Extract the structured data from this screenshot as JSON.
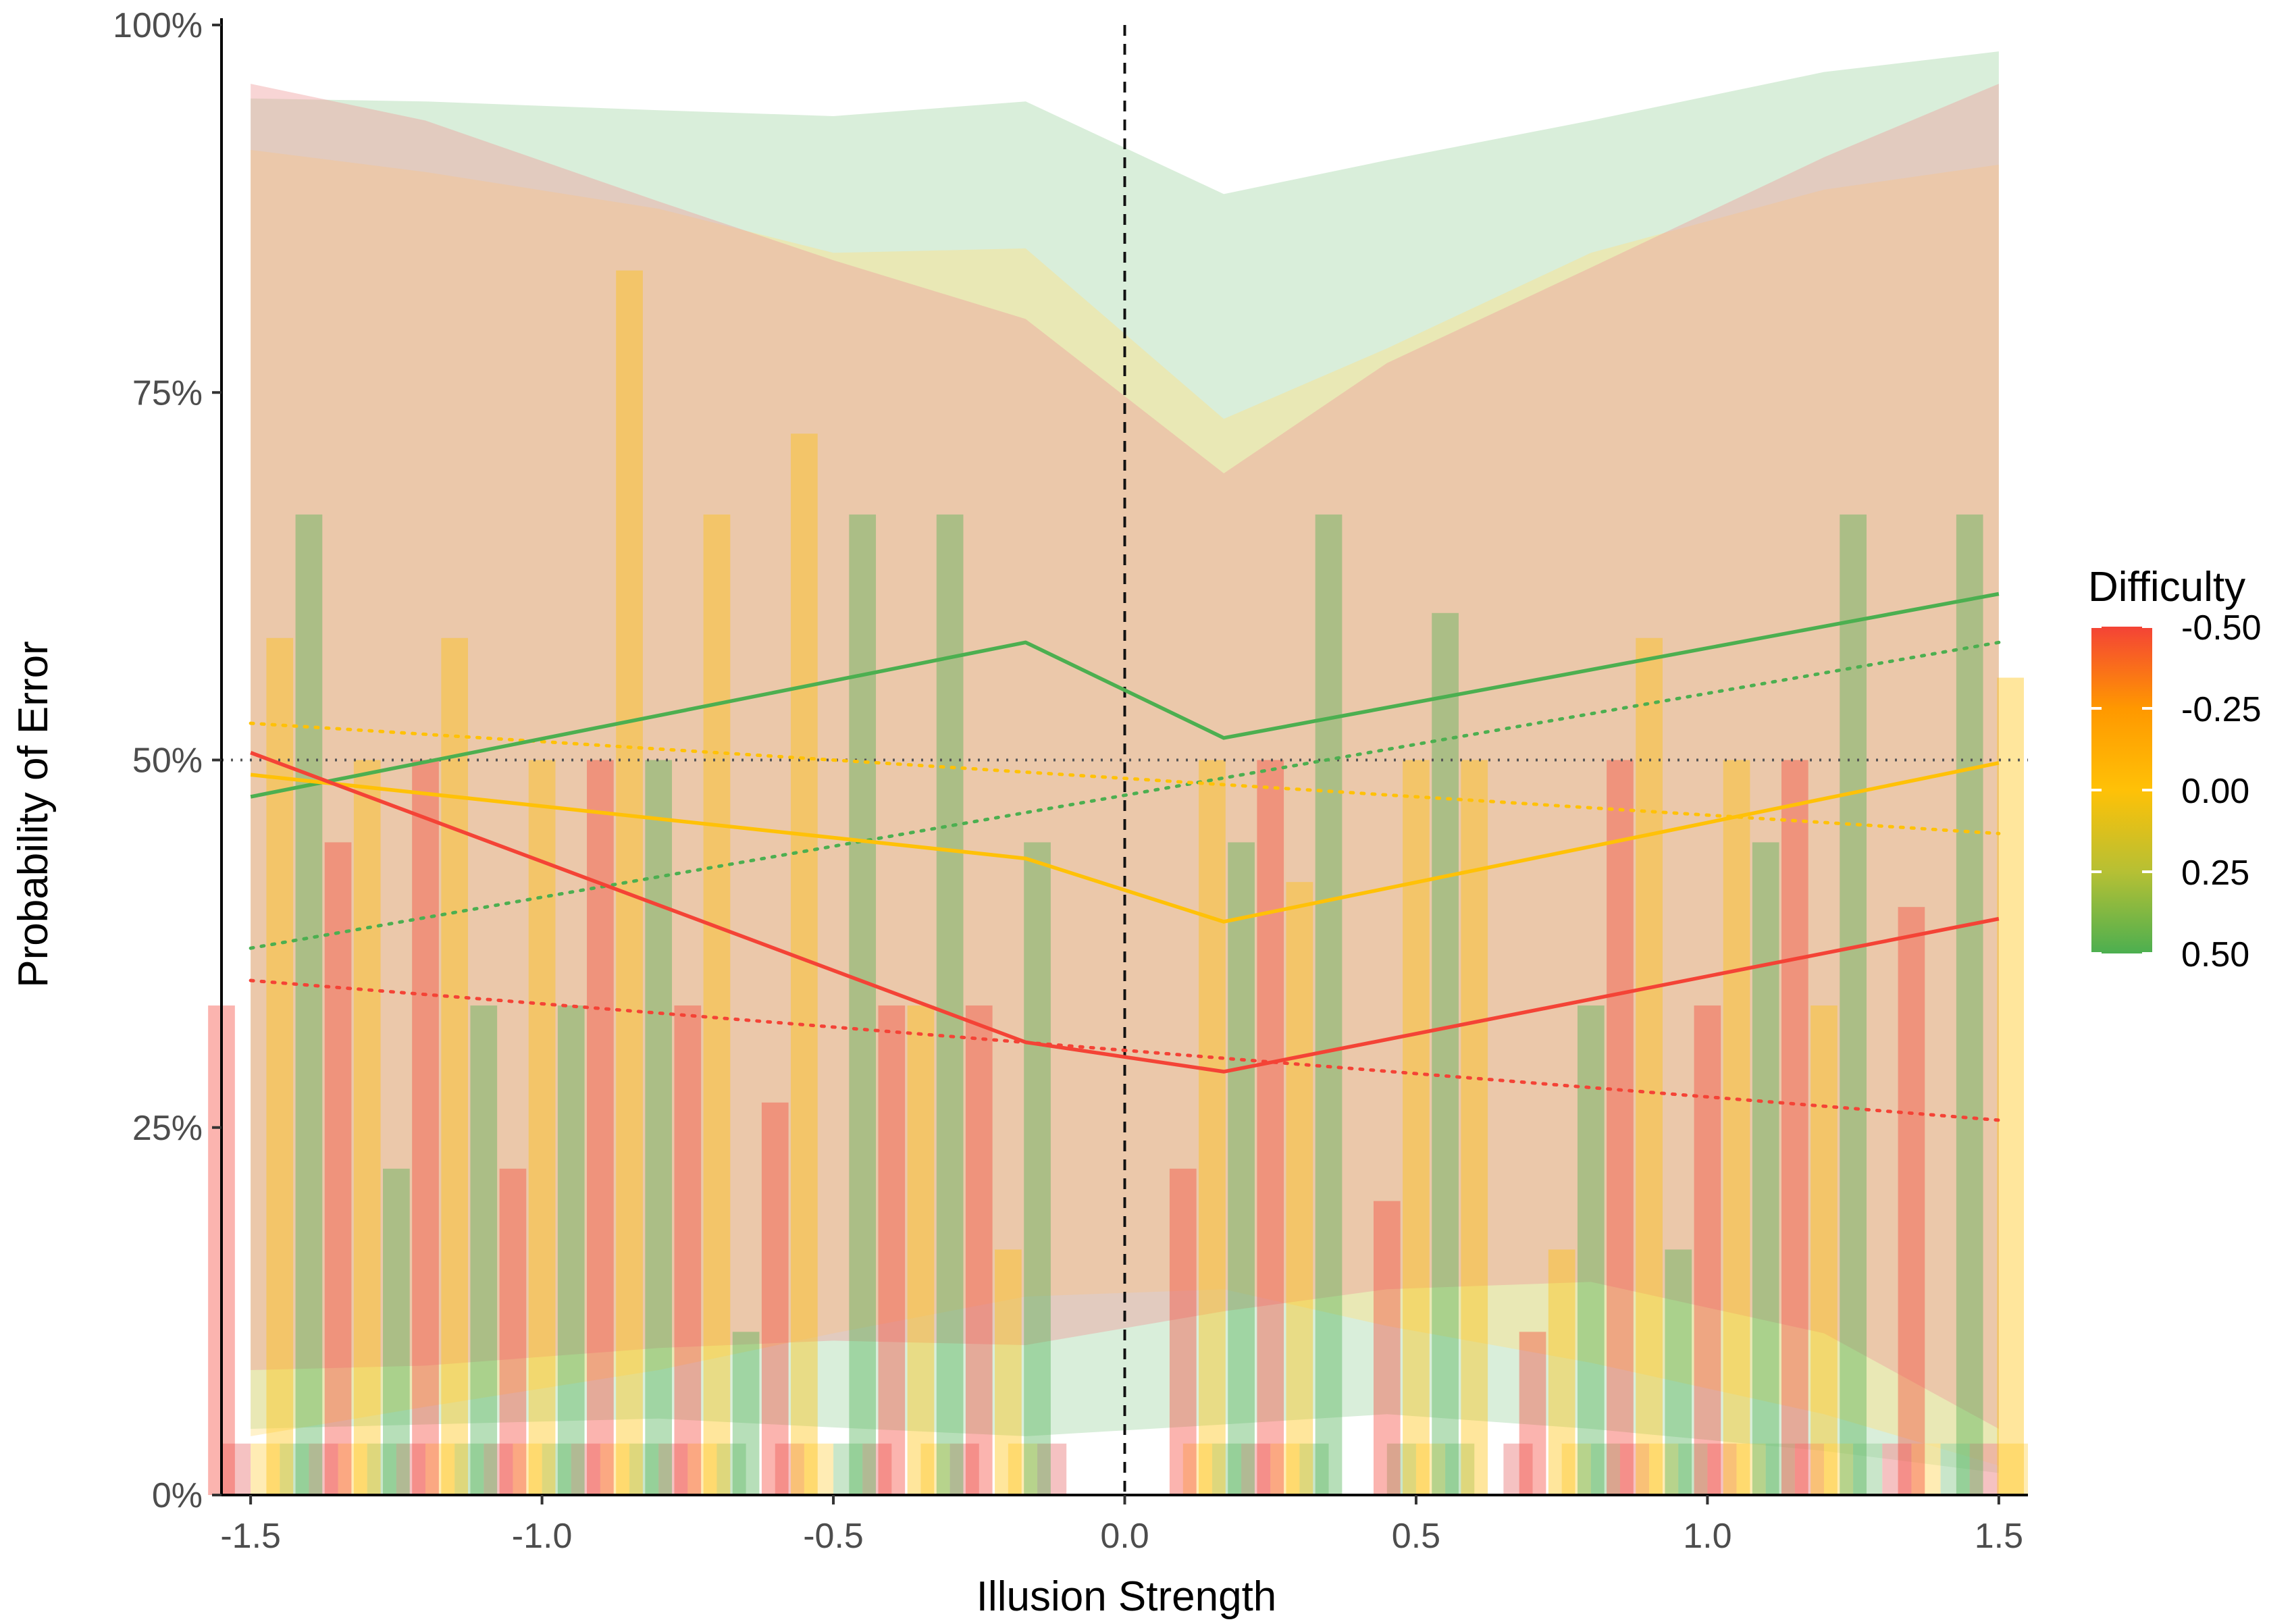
{
  "chart_data": {
    "type": "line",
    "title": "",
    "xlabel": "Illusion Strength",
    "ylabel": "Probability of Error",
    "xlim": [
      -1.55,
      1.55
    ],
    "ylim": [
      0,
      100
    ],
    "x_ticks": [
      {
        "value": -1.5,
        "label": "-1.5"
      },
      {
        "value": -1.0,
        "label": "-1.0"
      },
      {
        "value": -0.5,
        "label": "-0.5"
      },
      {
        "value": 0.0,
        "label": "0.0"
      },
      {
        "value": 0.5,
        "label": "0.5"
      },
      {
        "value": 1.0,
        "label": "1.0"
      },
      {
        "value": 1.5,
        "label": "1.5"
      }
    ],
    "y_ticks": [
      {
        "value": 0,
        "label": "0%"
      },
      {
        "value": 25,
        "label": "25%"
      },
      {
        "value": 50,
        "label": "50%"
      },
      {
        "value": 75,
        "label": "75%"
      },
      {
        "value": 100,
        "label": "100%"
      }
    ],
    "reference_lines": {
      "vertical_x": 0.0,
      "horizontal_y": 50
    },
    "grid": false,
    "legend": {
      "title": "Difficulty",
      "position": "right",
      "type": "colorbar",
      "stops": [
        {
          "value": -0.5,
          "label": "-0.50",
          "color": "#f44336"
        },
        {
          "value": -0.25,
          "label": "-0.25",
          "color": "#ff9800"
        },
        {
          "value": 0.0,
          "label": "0.00",
          "color": "#ffc107"
        },
        {
          "value": 0.25,
          "label": "0.25",
          "color": "#b6c034"
        },
        {
          "value": 0.5,
          "label": "0.50",
          "color": "#4caf50"
        }
      ]
    },
    "series": [
      {
        "difficulty": 0.5,
        "color": "#4caf50",
        "ribbon_color": "#a5d6a7",
        "line_x": [
          -1.5,
          -0.17,
          0.17,
          1.5
        ],
        "line_y": [
          47.5,
          58,
          51.5,
          61.3
        ],
        "trend_y": [
          37.2,
          58.0
        ],
        "ribbon_x": [
          -1.5,
          -1.2,
          -0.8,
          -0.5,
          -0.17,
          0.17,
          0.45,
          0.8,
          1.2,
          1.5
        ],
        "ribbon_upper": [
          95,
          94.8,
          94.2,
          93.8,
          94.8,
          88.5,
          90.8,
          93.5,
          96.8,
          98.2
        ],
        "ribbon_lower": [
          4.5,
          4.8,
          5.2,
          4.6,
          4.0,
          4.8,
          5.5,
          4.5,
          3.0,
          1.5
        ]
      },
      {
        "difficulty": 0.0,
        "color": "#ffc107",
        "ribbon_color": "#ffe082",
        "line_x": [
          -1.5,
          -0.17,
          0.17,
          1.5
        ],
        "line_y": [
          49.0,
          43.3,
          39.0,
          49.8
        ],
        "trend_y": [
          52.5,
          45.0
        ],
        "ribbon_x": [
          -1.5,
          -1.2,
          -0.8,
          -0.5,
          -0.17,
          0.17,
          0.45,
          0.8,
          1.2,
          1.5
        ],
        "ribbon_upper": [
          91.5,
          90.0,
          87.5,
          84.5,
          84.8,
          73.2,
          78.0,
          84.5,
          88.8,
          90.5
        ],
        "ribbon_lower": [
          4.0,
          6.0,
          8.5,
          11.0,
          13.5,
          14.0,
          11.5,
          9.0,
          5.5,
          2.0
        ]
      },
      {
        "difficulty": -0.5,
        "color": "#f44336",
        "ribbon_color": "#ef9a9a",
        "line_x": [
          -1.5,
          -0.17,
          0.17,
          1.5
        ],
        "line_y": [
          50.5,
          30.8,
          28.8,
          39.2
        ],
        "trend_y": [
          35.0,
          25.5
        ],
        "ribbon_x": [
          -1.5,
          -1.2,
          -0.8,
          -0.5,
          -0.17,
          0.17,
          0.45,
          0.8,
          1.2,
          1.5
        ],
        "ribbon_upper": [
          96.0,
          93.5,
          88.0,
          84.0,
          80.0,
          69.5,
          77.0,
          83.5,
          91.0,
          96.0
        ],
        "ribbon_lower": [
          8.5,
          8.8,
          10.0,
          10.5,
          10.2,
          12.5,
          14.0,
          14.5,
          11.0,
          4.5
        ]
      }
    ],
    "bars": [
      {
        "x": -1.55,
        "value": 33.3,
        "difficulty": -0.5
      },
      {
        "x": -1.45,
        "value": 58.3,
        "difficulty": 0.0
      },
      {
        "x": -1.4,
        "value": 66.7,
        "difficulty": 0.5
      },
      {
        "x": -1.35,
        "value": 44.4,
        "difficulty": -0.5
      },
      {
        "x": -1.3,
        "value": 50.0,
        "difficulty": 0.0
      },
      {
        "x": -1.25,
        "value": 22.2,
        "difficulty": 0.5
      },
      {
        "x": -1.2,
        "value": 50.0,
        "difficulty": -0.5
      },
      {
        "x": -1.15,
        "value": 58.3,
        "difficulty": 0.0
      },
      {
        "x": -1.1,
        "value": 33.3,
        "difficulty": 0.5
      },
      {
        "x": -1.05,
        "value": 22.2,
        "difficulty": -0.5
      },
      {
        "x": -1.0,
        "value": 50.0,
        "difficulty": 0.0
      },
      {
        "x": -0.95,
        "value": 33.3,
        "difficulty": 0.5
      },
      {
        "x": -0.9,
        "value": 50.0,
        "difficulty": -0.5
      },
      {
        "x": -0.85,
        "value": 83.3,
        "difficulty": 0.0
      },
      {
        "x": -0.8,
        "value": 50.0,
        "difficulty": 0.5
      },
      {
        "x": -0.75,
        "value": 33.3,
        "difficulty": -0.5
      },
      {
        "x": -0.7,
        "value": 66.7,
        "difficulty": 0.0
      },
      {
        "x": -0.65,
        "value": 11.1,
        "difficulty": 0.5
      },
      {
        "x": -0.6,
        "value": 26.7,
        "difficulty": -0.5
      },
      {
        "x": -0.55,
        "value": 72.2,
        "difficulty": 0.0
      },
      {
        "x": -0.45,
        "value": 66.7,
        "difficulty": 0.5
      },
      {
        "x": -0.4,
        "value": 33.3,
        "difficulty": -0.5
      },
      {
        "x": -0.35,
        "value": 33.3,
        "difficulty": 0.0
      },
      {
        "x": -0.3,
        "value": 66.7,
        "difficulty": 0.5
      },
      {
        "x": -0.25,
        "value": 33.3,
        "difficulty": -0.5
      },
      {
        "x": -0.2,
        "value": 16.7,
        "difficulty": 0.0
      },
      {
        "x": -0.15,
        "value": 44.4,
        "difficulty": 0.5
      },
      {
        "x": 0.1,
        "value": 22.2,
        "difficulty": -0.5
      },
      {
        "x": 0.15,
        "value": 50.0,
        "difficulty": 0.0
      },
      {
        "x": 0.2,
        "value": 44.4,
        "difficulty": 0.5
      },
      {
        "x": 0.25,
        "value": 50.0,
        "difficulty": -0.5
      },
      {
        "x": 0.3,
        "value": 41.7,
        "difficulty": 0.0
      },
      {
        "x": 0.35,
        "value": 66.7,
        "difficulty": 0.5
      },
      {
        "x": 0.45,
        "value": 20.0,
        "difficulty": -0.5
      },
      {
        "x": 0.5,
        "value": 50.0,
        "difficulty": 0.0
      },
      {
        "x": 0.55,
        "value": 60.0,
        "difficulty": 0.5
      },
      {
        "x": 0.6,
        "value": 50.0,
        "difficulty": 0.0
      },
      {
        "x": 0.7,
        "value": 11.1,
        "difficulty": -0.5
      },
      {
        "x": 0.75,
        "value": 16.7,
        "difficulty": 0.0
      },
      {
        "x": 0.8,
        "value": 33.3,
        "difficulty": 0.5
      },
      {
        "x": 0.85,
        "value": 50.0,
        "difficulty": -0.5
      },
      {
        "x": 0.9,
        "value": 58.3,
        "difficulty": 0.0
      },
      {
        "x": 0.95,
        "value": 16.7,
        "difficulty": 0.5
      },
      {
        "x": 1.0,
        "value": 33.3,
        "difficulty": -0.5
      },
      {
        "x": 1.05,
        "value": 50.0,
        "difficulty": 0.0
      },
      {
        "x": 1.1,
        "value": 44.4,
        "difficulty": 0.5
      },
      {
        "x": 1.15,
        "value": 50.0,
        "difficulty": -0.5
      },
      {
        "x": 1.2,
        "value": 33.3,
        "difficulty": 0.0
      },
      {
        "x": 1.25,
        "value": 66.7,
        "difficulty": 0.5
      },
      {
        "x": 1.35,
        "value": 40.0,
        "difficulty": -0.5
      },
      {
        "x": 1.45,
        "value": 66.7,
        "difficulty": 0.5
      },
      {
        "x": 1.52,
        "value": 55.6,
        "difficulty": 0.0
      }
    ],
    "baseline_strips": [
      {
        "x0": -1.55,
        "x1": -1.5,
        "difficulty": -0.5
      },
      {
        "x0": -1.5,
        "x1": -1.45,
        "difficulty": 0.0
      },
      {
        "x0": -1.45,
        "x1": -1.4,
        "difficulty": 0.5
      },
      {
        "x0": -1.4,
        "x1": -1.35,
        "difficulty": -0.5
      },
      {
        "x0": -1.35,
        "x1": -1.3,
        "difficulty": 0.0
      },
      {
        "x0": -1.3,
        "x1": -1.25,
        "difficulty": 0.5
      },
      {
        "x0": -1.25,
        "x1": -1.2,
        "difficulty": -0.5
      },
      {
        "x0": -1.2,
        "x1": -1.15,
        "difficulty": 0.0
      },
      {
        "x0": -1.15,
        "x1": -1.1,
        "difficulty": 0.5
      },
      {
        "x0": -1.1,
        "x1": -1.05,
        "difficulty": -0.5
      },
      {
        "x0": -1.05,
        "x1": -1.0,
        "difficulty": 0.0
      },
      {
        "x0": -1.0,
        "x1": -0.95,
        "difficulty": 0.5
      },
      {
        "x0": -0.95,
        "x1": -0.9,
        "difficulty": -0.5
      },
      {
        "x0": -0.9,
        "x1": -0.85,
        "difficulty": 0.0
      },
      {
        "x0": -0.85,
        "x1": -0.8,
        "difficulty": 0.5
      },
      {
        "x0": -0.8,
        "x1": -0.75,
        "difficulty": -0.5
      },
      {
        "x0": -0.75,
        "x1": -0.7,
        "difficulty": 0.0
      },
      {
        "x0": -0.7,
        "x1": -0.65,
        "difficulty": 0.5
      },
      {
        "x0": -0.6,
        "x1": -0.55,
        "difficulty": -0.5
      },
      {
        "x0": -0.55,
        "x1": -0.5,
        "difficulty": 0.0
      },
      {
        "x0": -0.5,
        "x1": -0.45,
        "difficulty": 0.5
      },
      {
        "x0": -0.45,
        "x1": -0.4,
        "difficulty": -0.5
      },
      {
        "x0": -0.35,
        "x1": -0.3,
        "difficulty": 0.0
      },
      {
        "x0": -0.3,
        "x1": -0.25,
        "difficulty": -0.5
      },
      {
        "x0": -0.2,
        "x1": -0.15,
        "difficulty": 0.0
      },
      {
        "x0": -0.15,
        "x1": -0.1,
        "difficulty": -0.5
      },
      {
        "x0": 0.1,
        "x1": 0.15,
        "difficulty": 0.0
      },
      {
        "x0": 0.15,
        "x1": 0.2,
        "difficulty": 0.5
      },
      {
        "x0": 0.2,
        "x1": 0.25,
        "difficulty": -0.5
      },
      {
        "x0": 0.25,
        "x1": 0.3,
        "difficulty": 0.0
      },
      {
        "x0": 0.3,
        "x1": 0.35,
        "difficulty": 0.5
      },
      {
        "x0": 0.45,
        "x1": 0.5,
        "difficulty": 0.5
      },
      {
        "x0": 0.5,
        "x1": 0.55,
        "difficulty": 0.0
      },
      {
        "x0": 0.55,
        "x1": 0.6,
        "difficulty": 0.5
      },
      {
        "x0": 0.65,
        "x1": 0.7,
        "difficulty": -0.5
      },
      {
        "x0": 0.75,
        "x1": 0.8,
        "difficulty": 0.0
      },
      {
        "x0": 0.8,
        "x1": 0.85,
        "difficulty": 0.5
      },
      {
        "x0": 0.85,
        "x1": 0.9,
        "difficulty": -0.5
      },
      {
        "x0": 0.9,
        "x1": 0.95,
        "difficulty": 0.0
      },
      {
        "x0": 0.95,
        "x1": 1.0,
        "difficulty": 0.5
      },
      {
        "x0": 1.0,
        "x1": 1.05,
        "difficulty": -0.5
      },
      {
        "x0": 1.05,
        "x1": 1.1,
        "difficulty": 0.0
      },
      {
        "x0": 1.1,
        "x1": 1.15,
        "difficulty": 0.5
      },
      {
        "x0": 1.15,
        "x1": 1.2,
        "difficulty": -0.5
      },
      {
        "x0": 1.2,
        "x1": 1.25,
        "difficulty": 0.0
      },
      {
        "x0": 1.25,
        "x1": 1.3,
        "difficulty": 0.5
      },
      {
        "x0": 1.3,
        "x1": 1.35,
        "difficulty": -0.5
      },
      {
        "x0": 1.35,
        "x1": 1.4,
        "difficulty": 0.0
      },
      {
        "x0": 1.4,
        "x1": 1.45,
        "difficulty": 0.5
      },
      {
        "x0": 1.45,
        "x1": 1.5,
        "difficulty": -0.5
      },
      {
        "x0": 1.5,
        "x1": 1.55,
        "difficulty": 0.0
      }
    ]
  }
}
